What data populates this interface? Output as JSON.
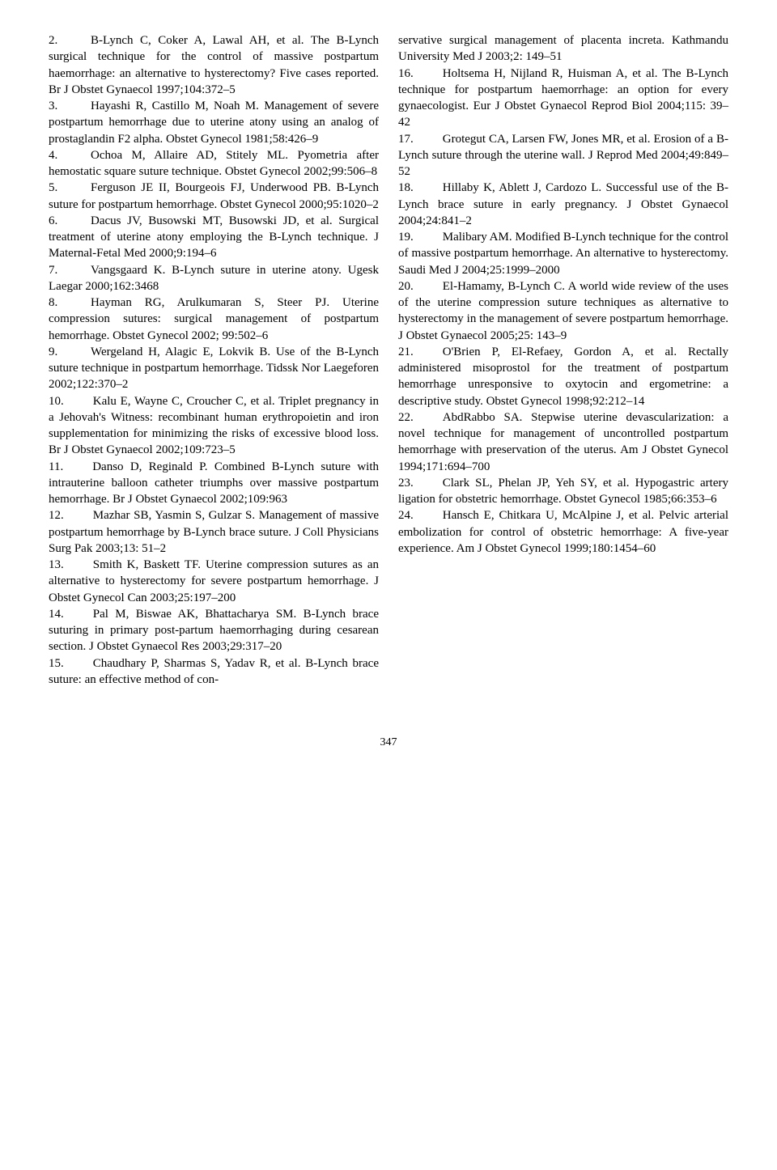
{
  "page_number": "347",
  "left_column": [
    {
      "num": "2.",
      "text": "B-Lynch C, Coker A, Lawal AH, et al. The B-Lynch surgical technique for the control of massive postpartum haemorrhage: an alternative to hysterectomy? Five cases reported. Br J Obstet Gynaecol 1997;104:372–5"
    },
    {
      "num": "3.",
      "text": "Hayashi R, Castillo M, Noah M. Management of severe postpartum hemorrhage due to uterine atony using an analog of prostaglandin F2 alpha. Obstet Gynecol 1981;58:426–9"
    },
    {
      "num": "4.",
      "text": "Ochoa M, Allaire AD, Stitely ML. Pyometria after hemostatic square suture technique. Obstet Gynecol 2002;99:506–8"
    },
    {
      "num": "5.",
      "text": "Ferguson JE II, Bourgeois FJ, Underwood PB. B-Lynch suture for postpartum hemorrhage. Obstet Gynecol 2000;95:1020–2"
    },
    {
      "num": "6.",
      "text": "Dacus JV, Busowski MT, Busowski JD, et al. Surgical treatment of uterine atony employing the B-Lynch technique. J Maternal-Fetal Med 2000;9:194–6"
    },
    {
      "num": "7.",
      "text": "Vangsgaard K. B-Lynch suture in uterine atony. Ugesk Laegar 2000;162:3468"
    },
    {
      "num": "8.",
      "text": "Hayman RG, Arulkumaran S, Steer PJ. Uterine compression sutures: surgical management of postpartum hemorrhage. Obstet Gynecol 2002; 99:502–6"
    },
    {
      "num": "9.",
      "text": "Wergeland H, Alagic E, Lokvik B. Use of the B-Lynch suture technique in postpartum hemorrhage. Tidssk Nor Laegeforen 2002;122:370–2"
    },
    {
      "num": "10.",
      "text": "Kalu E, Wayne C, Croucher C, et al. Triplet pregnancy in a Jehovah's Witness: recombinant human erythropoietin and iron supplementation for minimizing the risks of excessive blood loss. Br J Obstet Gynaecol 2002;109:723–5"
    },
    {
      "num": "11.",
      "text": "Danso D, Reginald P. Combined B-Lynch suture with intrauterine balloon catheter triumphs over massive postpartum hemorrhage. Br J Obstet Gynaecol 2002;109:963"
    },
    {
      "num": "12.",
      "text": "Mazhar SB, Yasmin S, Gulzar S. Management of massive postpartum hemorrhage by B-Lynch brace suture. J Coll Physicians Surg Pak 2003;13: 51–2"
    },
    {
      "num": "13.",
      "text": "Smith K, Baskett TF. Uterine compression sutures as an alternative to hysterectomy for severe postpartum hemorrhage. J Obstet Gynecol Can 2003;25:197–200"
    },
    {
      "num": "14.",
      "text": "Pal M, Biswae AK, Bhattacharya SM. B-Lynch brace suturing in primary post-partum haemorrhaging during cesarean section. J Obstet Gynaecol Res 2003;29:317–20"
    },
    {
      "num": "15.",
      "text": "Chaudhary P, Sharmas S, Yadav R, et al. B-Lynch brace suture: an effective method of con-"
    }
  ],
  "right_column_prefix": "servative surgical management of placenta increta. Kathmandu University Med J 2003;2: 149–51",
  "right_column": [
    {
      "num": "16.",
      "text": "Holtsema H, Nijland R, Huisman A, et al. The B-Lynch technique for postpartum haemorrhage: an option for every gynaecologist. Eur J Obstet Gynaecol Reprod Biol 2004;115: 39–42"
    },
    {
      "num": "17.",
      "text": "Grotegut CA, Larsen FW, Jones MR, et al. Erosion of a B-Lynch suture through the uterine wall. J Reprod Med 2004;49:849–52"
    },
    {
      "num": "18.",
      "text": "Hillaby K, Ablett J, Cardozo L. Successful use of the B-Lynch brace suture in early pregnancy. J Obstet Gynaecol 2004;24:841–2"
    },
    {
      "num": "19.",
      "text": "Malibary AM. Modified B-Lynch technique for the control of massive postpartum hemorrhage. An alternative to hysterectomy. Saudi Med J 2004;25:1999–2000"
    },
    {
      "num": "20.",
      "text": "El-Hamamy, B-Lynch C. A world wide review of the uses of the uterine compression suture techniques as alternative to hysterectomy in the management of severe postpartum hemorrhage. J Obstet Gynaecol 2005;25: 143–9"
    },
    {
      "num": "21.",
      "text": "O'Brien P, El-Refaey, Gordon A, et al. Rectally administered misoprostol for the treatment of postpartum hemorrhage unresponsive to oxytocin and ergometrine: a descriptive study. Obstet Gynecol 1998;92:212–14"
    },
    {
      "num": "22.",
      "text": "AbdRabbo SA. Stepwise uterine devascularization: a novel technique for management of uncontrolled postpartum hemorrhage with preservation of the uterus. Am J Obstet Gynecol 1994;171:694–700"
    },
    {
      "num": "23.",
      "text": "Clark SL, Phelan JP, Yeh SY, et al. Hypogastric artery ligation for obstetric hemorrhage. Obstet Gynecol 1985;66:353–6"
    },
    {
      "num": "24.",
      "text": "Hansch E, Chitkara U, McAlpine J, et al. Pelvic arterial embolization for control of obstetric hemorrhage: A five-year experience. Am J Obstet Gynecol 1999;180:1454–60"
    }
  ]
}
